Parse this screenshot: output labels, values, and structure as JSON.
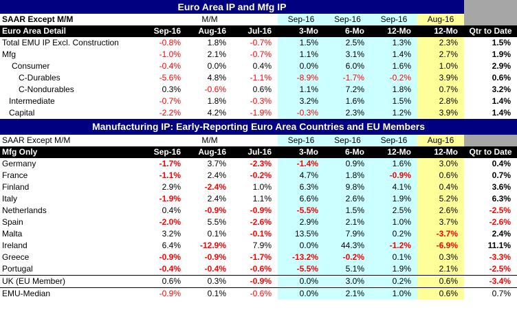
{
  "title1": "Euro Area IP and Mfg IP",
  "title2": "Manufacturing IP: Early-Reporting Euro Area Countries and EU Members",
  "header_row1": [
    "SAAR Except M/M",
    "M/M",
    "Sep-16",
    "Sep-16",
    "Sep-16",
    "Aug-16"
  ],
  "header_row2_sec1": [
    "Euro Area Detail",
    "Sep-16",
    "Aug-16",
    "Jul-16",
    "3-Mo",
    "6-Mo",
    "12-Mo",
    "12-Mo",
    "Qtr to Date"
  ],
  "header_row2_sec2": [
    "Mfg Only",
    "Sep-16",
    "Aug-16",
    "Jul-16",
    "3-Mo",
    "6-Mo",
    "12-Mo",
    "12-Mo",
    "Qtr to Date"
  ],
  "section1_rows": [
    {
      "label": "Total EMU IP Excl. Construction",
      "v": [
        "-0.8%",
        "1.8%",
        "-0.7%",
        "1.5%",
        "2.5%",
        "1.3%",
        "2.3%",
        "1.5%"
      ]
    },
    {
      "label": "Mfg",
      "v": [
        "-1.0%",
        "2.1%",
        "-0.7%",
        "1.1%",
        "3.1%",
        "1.4%",
        "2.7%",
        "1.9%"
      ]
    },
    {
      "label": "Consumer",
      "v": [
        "-0.4%",
        "0.0%",
        "0.4%",
        "0.0%",
        "6.0%",
        "1.6%",
        "1.0%",
        "2.9%"
      ]
    },
    {
      "label": "C-Durables",
      "v": [
        "-5.6%",
        "4.8%",
        "-1.1%",
        "-8.9%",
        "-1.7%",
        "-0.2%",
        "3.9%",
        "0.6%"
      ]
    },
    {
      "label": "C-Nondurables",
      "v": [
        "0.3%",
        "-0.6%",
        "0.6%",
        "1.1%",
        "7.2%",
        "1.8%",
        "0.7%",
        "3.2%"
      ]
    },
    {
      "label": "Intermediate",
      "v": [
        "-0.7%",
        "1.8%",
        "-0.3%",
        "3.2%",
        "1.6%",
        "1.5%",
        "2.8%",
        "1.4%"
      ]
    },
    {
      "label": "Capital",
      "v": [
        "-2.2%",
        "4.2%",
        "-1.9%",
        "-0.3%",
        "2.3%",
        "1.2%",
        "3.9%",
        "1.4%"
      ]
    }
  ],
  "section2_rows": [
    {
      "label": "Germany",
      "v": [
        "-1.7%",
        "3.7%",
        "-2.3%",
        "-1.4%",
        "0.9%",
        "1.6%",
        "3.0%",
        "0.4%"
      ]
    },
    {
      "label": "France",
      "v": [
        "-1.1%",
        "2.4%",
        "-0.2%",
        "4.7%",
        "1.8%",
        "-0.9%",
        "0.6%",
        "0.7%"
      ]
    },
    {
      "label": "Finland",
      "v": [
        "2.9%",
        "-2.4%",
        "1.0%",
        "6.3%",
        "9.8%",
        "4.1%",
        "0.4%",
        "3.6%"
      ]
    },
    {
      "label": "Italy",
      "v": [
        "-1.9%",
        "2.4%",
        "1.1%",
        "6.6%",
        "2.6%",
        "1.9%",
        "5.2%",
        "6.3%"
      ]
    },
    {
      "label": "Netherlands",
      "v": [
        "0.4%",
        "-0.9%",
        "-0.9%",
        "-5.5%",
        "1.5%",
        "2.5%",
        "2.6%",
        "-2.5%"
      ]
    },
    {
      "label": "Spain",
      "v": [
        "-2.0%",
        "5.5%",
        "-2.6%",
        "2.9%",
        "2.1%",
        "1.0%",
        "3.7%",
        "-2.6%"
      ]
    },
    {
      "label": "Malta",
      "v": [
        "3.2%",
        "0.1%",
        "-0.1%",
        "13.5%",
        "7.9%",
        "0.2%",
        "-3.7%",
        "2.4%"
      ]
    },
    {
      "label": "Ireland",
      "v": [
        "6.4%",
        "-12.9%",
        "7.9%",
        "0.0%",
        "44.3%",
        "-1.2%",
        "-6.9%",
        "11.1%"
      ]
    },
    {
      "label": "Greece",
      "v": [
        "-0.9%",
        "-0.9%",
        "-1.7%",
        "-13.2%",
        "-0.2%",
        "0.1%",
        "0.3%",
        "-3.3%"
      ]
    },
    {
      "label": "Portugal",
      "v": [
        "-0.4%",
        "-0.4%",
        "-0.6%",
        "-5.5%",
        "5.1%",
        "1.9%",
        "2.1%",
        "-2.5%"
      ]
    }
  ],
  "uk_row": {
    "label": "UK (EU Member)",
    "v": [
      "0.6%",
      "0.3%",
      "-0.9%",
      "0.0%",
      "3.0%",
      "0.2%",
      "0.6%",
      "-3.4%"
    ]
  },
  "median_row": {
    "label": "EMU-Median",
    "v": [
      "-0.9%",
      "0.1%",
      "-0.6%",
      "0.0%",
      "2.1%",
      "1.0%",
      "0.6%",
      "0.7%"
    ]
  },
  "colors": {
    "title_band": "#000080",
    "negative": "#ff0000",
    "cyan": "#ccffff",
    "yellow": "#ffff99",
    "gray": "#a6a6a6"
  }
}
